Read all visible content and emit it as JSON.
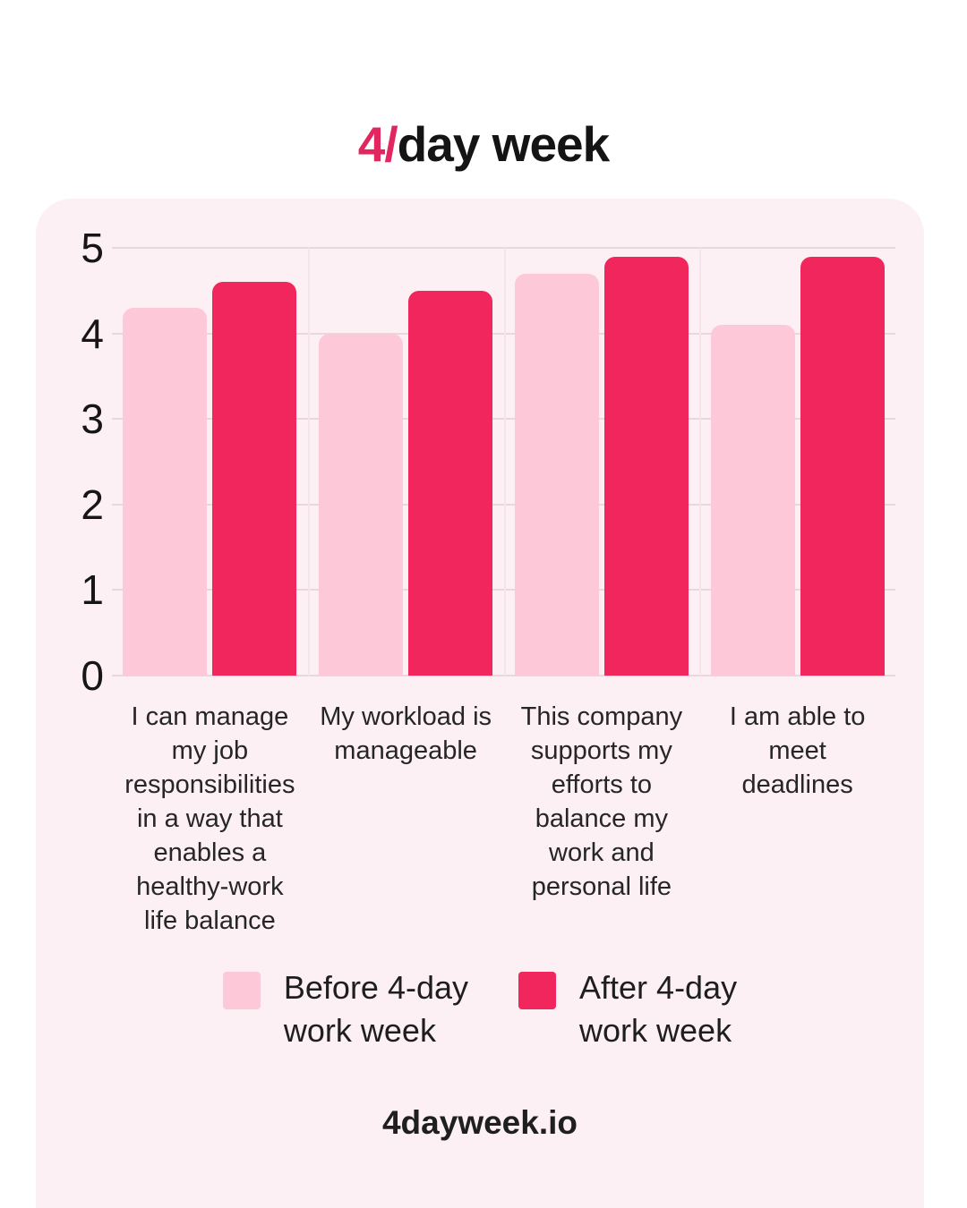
{
  "page": {
    "title_accent": "4/",
    "title_rest": "day week",
    "footer": "4dayweek.io"
  },
  "colors": {
    "accent_pink": "#E2265F",
    "before_bar": "#FDC9D8",
    "after_bar": "#F1265C",
    "card_background": "#FCF0F4",
    "gridline": "#E9D7DD",
    "text": "#1E1E1E"
  },
  "chart_data": {
    "type": "bar",
    "title": "4/day week",
    "categories": [
      "I can manage\nmy job\nresponsibilities\nin a way that\nenables a\nhealthy-work\nlife balance",
      "My workload is\nmanageable",
      "This company\nsupports my\nefforts to\nbalance my\nwork and\npersonal life",
      "I am able to\nmeet\ndeadlines"
    ],
    "series": [
      {
        "name": "Before 4-day work week",
        "color": "#FDC9D8",
        "values": [
          4.3,
          4.0,
          4.7,
          4.1
        ]
      },
      {
        "name": "After 4-day work week",
        "color": "#F1265C",
        "values": [
          4.6,
          4.5,
          4.9,
          4.9
        ]
      }
    ],
    "ylim": [
      0,
      5
    ],
    "yticks": [
      5,
      4,
      3,
      2,
      1,
      0
    ],
    "grid": true,
    "legend_position": "bottom",
    "legend": [
      {
        "label": "Before 4-day\nwork week",
        "color": "#FDC9D8"
      },
      {
        "label": "After 4-day\nwork week",
        "color": "#F1265C"
      }
    ]
  }
}
